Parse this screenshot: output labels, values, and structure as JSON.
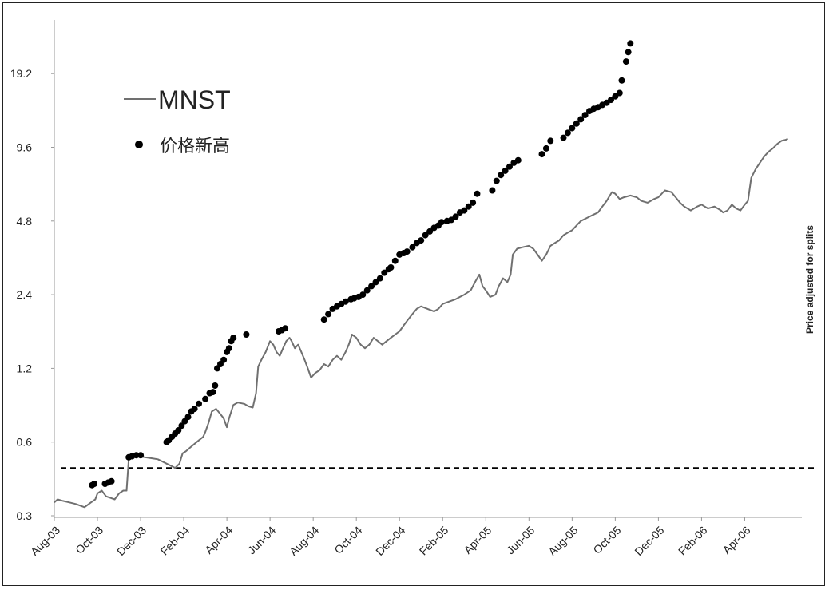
{
  "chart_data": {
    "type": "line",
    "title": "",
    "y_scale": "log2",
    "y_ticks": [
      "0.3",
      "0.6",
      "1.2",
      "2.4",
      "4.8",
      "9.6",
      "19.2"
    ],
    "y_tick_values": [
      0.3,
      0.6,
      1.2,
      2.4,
      4.8,
      9.6,
      19.2
    ],
    "ylim": [
      0.3,
      30
    ],
    "x_ticks": [
      "Aug-03",
      "Oct-03",
      "Dec-03",
      "Feb-04",
      "Apr-04",
      "Jun-04",
      "Aug-04",
      "Oct-04",
      "Dec-04",
      "Feb-05",
      "Apr-05",
      "Jun-05",
      "Aug-05",
      "Oct-05",
      "Dec-05",
      "Feb-06",
      "Apr-06"
    ],
    "x_tick_index": [
      0,
      2,
      4,
      6,
      8,
      10,
      12,
      14,
      16,
      18,
      20,
      22,
      24,
      26,
      28,
      30,
      32
    ],
    "x_unit": "month index from Aug-03",
    "x_range": [
      0,
      34.5
    ],
    "series_line": {
      "name": "MNST",
      "color": "#707070",
      "points": [
        [
          0,
          0.34
        ],
        [
          0.15,
          0.35
        ],
        [
          0.4,
          0.345
        ],
        [
          0.7,
          0.34
        ],
        [
          1.0,
          0.335
        ],
        [
          1.2,
          0.33
        ],
        [
          1.4,
          0.325
        ],
        [
          1.7,
          0.34
        ],
        [
          1.9,
          0.35
        ],
        [
          2.0,
          0.37
        ],
        [
          2.2,
          0.38
        ],
        [
          2.4,
          0.36
        ],
        [
          2.6,
          0.355
        ],
        [
          2.8,
          0.35
        ],
        [
          3.0,
          0.37
        ],
        [
          3.2,
          0.38
        ],
        [
          3.35,
          0.38
        ],
        [
          3.45,
          0.51
        ],
        [
          3.6,
          0.52
        ],
        [
          3.9,
          0.525
        ],
        [
          4.2,
          0.52
        ],
        [
          4.5,
          0.515
        ],
        [
          4.8,
          0.51
        ],
        [
          5.0,
          0.5
        ],
        [
          5.2,
          0.49
        ],
        [
          5.4,
          0.48
        ],
        [
          5.6,
          0.47
        ],
        [
          5.8,
          0.49
        ],
        [
          5.95,
          0.54
        ],
        [
          6.1,
          0.55
        ],
        [
          6.3,
          0.57
        ],
        [
          6.6,
          0.6
        ],
        [
          6.9,
          0.63
        ],
        [
          7.0,
          0.66
        ],
        [
          7.15,
          0.72
        ],
        [
          7.3,
          0.8
        ],
        [
          7.5,
          0.82
        ],
        [
          7.7,
          0.78
        ],
        [
          7.85,
          0.75
        ],
        [
          8.0,
          0.69
        ],
        [
          8.1,
          0.75
        ],
        [
          8.3,
          0.85
        ],
        [
          8.5,
          0.87
        ],
        [
          8.8,
          0.86
        ],
        [
          9.0,
          0.84
        ],
        [
          9.2,
          0.83
        ],
        [
          9.35,
          0.95
        ],
        [
          9.45,
          1.22
        ],
        [
          9.6,
          1.3
        ],
        [
          9.8,
          1.4
        ],
        [
          10.0,
          1.55
        ],
        [
          10.15,
          1.5
        ],
        [
          10.3,
          1.4
        ],
        [
          10.45,
          1.35
        ],
        [
          10.6,
          1.45
        ],
        [
          10.75,
          1.55
        ],
        [
          10.9,
          1.6
        ],
        [
          11.0,
          1.55
        ],
        [
          11.15,
          1.45
        ],
        [
          11.3,
          1.5
        ],
        [
          11.45,
          1.4
        ],
        [
          11.6,
          1.3
        ],
        [
          11.75,
          1.2
        ],
        [
          11.9,
          1.1
        ],
        [
          12.1,
          1.15
        ],
        [
          12.3,
          1.18
        ],
        [
          12.5,
          1.25
        ],
        [
          12.7,
          1.22
        ],
        [
          12.9,
          1.3
        ],
        [
          13.1,
          1.35
        ],
        [
          13.3,
          1.3
        ],
        [
          13.5,
          1.4
        ],
        [
          13.65,
          1.5
        ],
        [
          13.8,
          1.65
        ],
        [
          14.0,
          1.6
        ],
        [
          14.2,
          1.5
        ],
        [
          14.4,
          1.45
        ],
        [
          14.6,
          1.5
        ],
        [
          14.8,
          1.6
        ],
        [
          15.0,
          1.55
        ],
        [
          15.2,
          1.5
        ],
        [
          15.4,
          1.55
        ],
        [
          15.6,
          1.6
        ],
        [
          15.8,
          1.65
        ],
        [
          16.0,
          1.7
        ],
        [
          16.2,
          1.8
        ],
        [
          16.4,
          1.9
        ],
        [
          16.6,
          2.0
        ],
        [
          16.8,
          2.1
        ],
        [
          17.0,
          2.15
        ],
        [
          17.3,
          2.1
        ],
        [
          17.6,
          2.05
        ],
        [
          17.8,
          2.1
        ],
        [
          18.0,
          2.2
        ],
        [
          18.3,
          2.25
        ],
        [
          18.6,
          2.3
        ],
        [
          18.8,
          2.35
        ],
        [
          19.0,
          2.4
        ],
        [
          19.3,
          2.5
        ],
        [
          19.5,
          2.7
        ],
        [
          19.7,
          2.9
        ],
        [
          19.85,
          2.6
        ],
        [
          20.0,
          2.5
        ],
        [
          20.2,
          2.35
        ],
        [
          20.45,
          2.4
        ],
        [
          20.6,
          2.6
        ],
        [
          20.8,
          2.8
        ],
        [
          21.0,
          2.7
        ],
        [
          21.15,
          2.9
        ],
        [
          21.25,
          3.5
        ],
        [
          21.45,
          3.7
        ],
        [
          21.7,
          3.75
        ],
        [
          22.0,
          3.8
        ],
        [
          22.2,
          3.7
        ],
        [
          22.4,
          3.5
        ],
        [
          22.6,
          3.3
        ],
        [
          22.8,
          3.5
        ],
        [
          23.0,
          3.8
        ],
        [
          23.2,
          3.9
        ],
        [
          23.4,
          4.0
        ],
        [
          23.6,
          4.2
        ],
        [
          23.8,
          4.3
        ],
        [
          24.0,
          4.4
        ],
        [
          24.2,
          4.6
        ],
        [
          24.4,
          4.8
        ],
        [
          24.6,
          4.9
        ],
        [
          24.8,
          5.0
        ],
        [
          25.0,
          5.1
        ],
        [
          25.2,
          5.2
        ],
        [
          25.4,
          5.5
        ],
        [
          25.6,
          5.8
        ],
        [
          25.75,
          6.1
        ],
        [
          25.85,
          6.3
        ],
        [
          26.0,
          6.2
        ],
        [
          26.2,
          5.9
        ],
        [
          26.4,
          6.0
        ],
        [
          26.7,
          6.1
        ],
        [
          27.0,
          6.0
        ],
        [
          27.2,
          5.8
        ],
        [
          27.5,
          5.7
        ],
        [
          27.8,
          5.9
        ],
        [
          28.0,
          6.0
        ],
        [
          28.3,
          6.4
        ],
        [
          28.6,
          6.3
        ],
        [
          28.8,
          6.0
        ],
        [
          29.0,
          5.7
        ],
        [
          29.2,
          5.5
        ],
        [
          29.5,
          5.3
        ],
        [
          29.8,
          5.5
        ],
        [
          30.0,
          5.6
        ],
        [
          30.3,
          5.4
        ],
        [
          30.6,
          5.5
        ],
        [
          30.9,
          5.3
        ],
        [
          31.0,
          5.2
        ],
        [
          31.2,
          5.3
        ],
        [
          31.4,
          5.6
        ],
        [
          31.6,
          5.4
        ],
        [
          31.8,
          5.3
        ],
        [
          32.0,
          5.6
        ],
        [
          32.15,
          5.8
        ],
        [
          32.3,
          7.2
        ],
        [
          32.5,
          7.8
        ],
        [
          32.7,
          8.3
        ],
        [
          32.9,
          8.8
        ],
        [
          33.1,
          9.2
        ],
        [
          33.3,
          9.5
        ],
        [
          33.5,
          9.9
        ],
        [
          33.7,
          10.2
        ],
        [
          33.9,
          10.3
        ],
        [
          34.0,
          10.4
        ]
      ]
    },
    "series_dots": {
      "name": "价格新高",
      "color": "#000000",
      "points": [
        [
          1.75,
          0.4
        ],
        [
          1.85,
          0.405
        ],
        [
          2.35,
          0.405
        ],
        [
          2.5,
          0.41
        ],
        [
          2.65,
          0.415
        ],
        [
          3.45,
          0.52
        ],
        [
          3.6,
          0.525
        ],
        [
          3.8,
          0.53
        ],
        [
          4.0,
          0.53
        ],
        [
          5.2,
          0.6
        ],
        [
          5.3,
          0.61
        ],
        [
          5.45,
          0.63
        ],
        [
          5.6,
          0.65
        ],
        [
          5.75,
          0.67
        ],
        [
          5.9,
          0.7
        ],
        [
          6.05,
          0.73
        ],
        [
          6.2,
          0.76
        ],
        [
          6.35,
          0.8
        ],
        [
          6.5,
          0.82
        ],
        [
          6.7,
          0.86
        ],
        [
          7.0,
          0.9
        ],
        [
          7.2,
          0.95
        ],
        [
          7.35,
          0.96
        ],
        [
          7.45,
          1.02
        ],
        [
          7.55,
          1.2
        ],
        [
          7.7,
          1.25
        ],
        [
          7.85,
          1.3
        ],
        [
          8.0,
          1.4
        ],
        [
          8.1,
          1.45
        ],
        [
          8.2,
          1.55
        ],
        [
          8.3,
          1.6
        ],
        [
          8.9,
          1.65
        ],
        [
          10.4,
          1.7
        ],
        [
          10.55,
          1.72
        ],
        [
          10.7,
          1.75
        ],
        [
          12.5,
          1.9
        ],
        [
          12.7,
          2.0
        ],
        [
          12.9,
          2.1
        ],
        [
          13.1,
          2.15
        ],
        [
          13.3,
          2.2
        ],
        [
          13.5,
          2.25
        ],
        [
          13.75,
          2.3
        ],
        [
          13.9,
          2.32
        ],
        [
          14.1,
          2.35
        ],
        [
          14.3,
          2.4
        ],
        [
          14.5,
          2.5
        ],
        [
          14.7,
          2.6
        ],
        [
          14.9,
          2.7
        ],
        [
          15.1,
          2.8
        ],
        [
          15.3,
          2.95
        ],
        [
          15.5,
          3.05
        ],
        [
          15.6,
          3.1
        ],
        [
          15.8,
          3.3
        ],
        [
          16.0,
          3.5
        ],
        [
          16.2,
          3.55
        ],
        [
          16.35,
          3.6
        ],
        [
          16.6,
          3.75
        ],
        [
          16.8,
          3.9
        ],
        [
          17.0,
          4.0
        ],
        [
          17.2,
          4.2
        ],
        [
          17.4,
          4.35
        ],
        [
          17.6,
          4.5
        ],
        [
          17.8,
          4.6
        ],
        [
          17.95,
          4.75
        ],
        [
          18.2,
          4.8
        ],
        [
          18.4,
          4.85
        ],
        [
          18.6,
          5.0
        ],
        [
          18.8,
          5.2
        ],
        [
          19.0,
          5.3
        ],
        [
          19.2,
          5.5
        ],
        [
          19.4,
          5.7
        ],
        [
          19.6,
          6.2
        ],
        [
          20.3,
          6.4
        ],
        [
          20.5,
          7.0
        ],
        [
          20.7,
          7.4
        ],
        [
          20.9,
          7.7
        ],
        [
          21.1,
          8.0
        ],
        [
          21.3,
          8.3
        ],
        [
          21.5,
          8.5
        ],
        [
          22.6,
          9.0
        ],
        [
          22.8,
          9.5
        ],
        [
          23.0,
          10.2
        ],
        [
          23.6,
          10.5
        ],
        [
          23.8,
          11.0
        ],
        [
          24.0,
          11.5
        ],
        [
          24.2,
          12.0
        ],
        [
          24.4,
          12.5
        ],
        [
          24.6,
          13.0
        ],
        [
          24.8,
          13.5
        ],
        [
          25.0,
          13.8
        ],
        [
          25.2,
          14.0
        ],
        [
          25.4,
          14.3
        ],
        [
          25.6,
          14.6
        ],
        [
          25.8,
          15.0
        ],
        [
          26.0,
          15.5
        ],
        [
          26.2,
          16.0
        ],
        [
          26.3,
          18.0
        ],
        [
          26.5,
          21.5
        ],
        [
          26.6,
          23.5
        ],
        [
          26.7,
          25.5
        ]
      ]
    },
    "reference_line": {
      "value": 0.47,
      "style": "dashed",
      "color": "#000000"
    }
  },
  "legend": {
    "line_label": "MNST",
    "dot_label": "价格新高"
  },
  "side_note": "Price adjusted for splits"
}
